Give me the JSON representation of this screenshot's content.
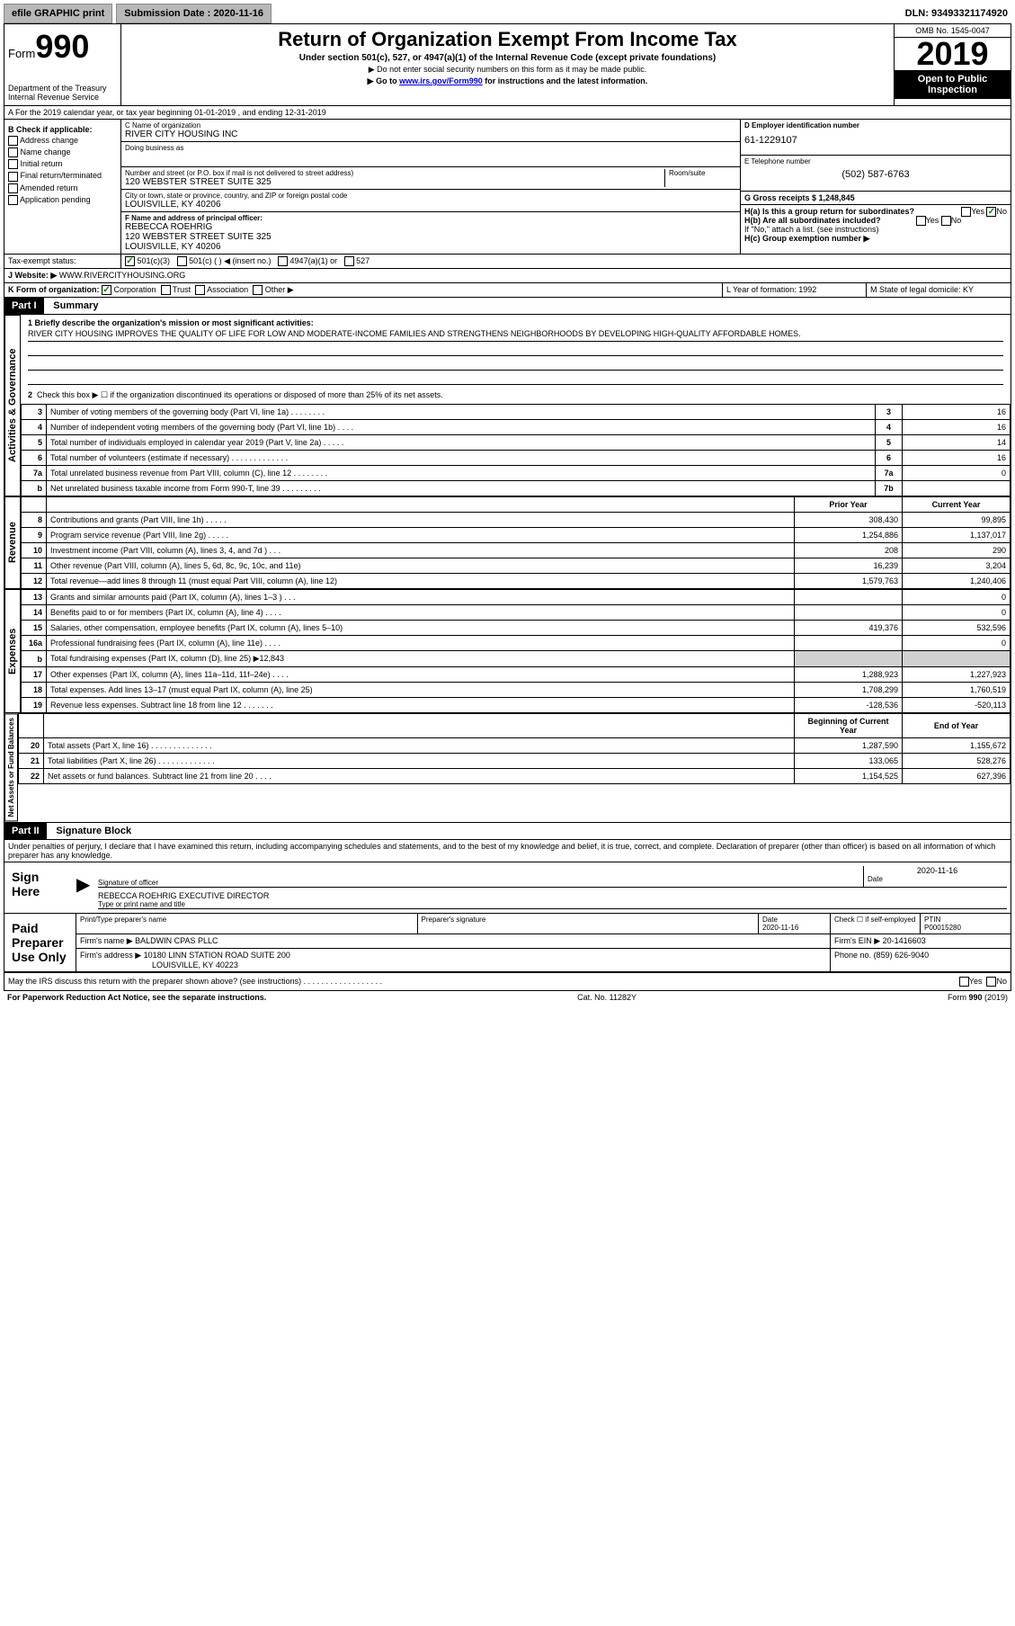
{
  "topbar": {
    "efile": "efile GRAPHIC print",
    "submission_label": "Submission Date : 2020-11-16",
    "dln_label": "DLN: 93493321174920"
  },
  "header": {
    "form_label": "Form",
    "form_number": "990",
    "dept": "Department of the Treasury\nInternal Revenue Service",
    "title": "Return of Organization Exempt From Income Tax",
    "sub1": "Under section 501(c), 527, or 4947(a)(1) of the Internal Revenue Code (except private foundations)",
    "sub2": "▶ Do not enter social security numbers on this form as it may be made public.",
    "sub3_prefix": "▶ Go to ",
    "sub3_link": "www.irs.gov/Form990",
    "sub3_suffix": " for instructions and the latest information.",
    "omb": "OMB No. 1545-0047",
    "year": "2019",
    "open": "Open to Public Inspection"
  },
  "section_a": "A For the 2019 calendar year, or tax year beginning 01-01-2019   , and ending 12-31-2019",
  "check_b": {
    "title": "B Check if applicable:",
    "items": [
      "Address change",
      "Name change",
      "Initial return",
      "Final return/terminated",
      "Amended return",
      "Application pending"
    ]
  },
  "org": {
    "name_label": "C Name of organization",
    "name": "RIVER CITY HOUSING INC",
    "dba_label": "Doing business as",
    "dba": "",
    "addr_label": "Number and street (or P.O. box if mail is not delivered to street address)",
    "addr": "120 WEBSTER STREET SUITE 325",
    "room_label": "Room/suite",
    "city_label": "City or town, state or province, country, and ZIP or foreign postal code",
    "city": "LOUISVILLE, KY  40206",
    "f_label": "F  Name and address of principal officer:",
    "f_name": "REBECCA ROEHRIG",
    "f_addr1": "120 WEBSTER STREET SUITE 325",
    "f_addr2": "LOUISVILLE, KY  40206"
  },
  "right": {
    "ein_label": "D Employer identification number",
    "ein": "61-1229107",
    "tel_label": "E Telephone number",
    "tel": "(502) 587-6763",
    "gross_label": "G Gross receipts $ 1,248,845",
    "ha_label": "H(a)  Is this a group return for subordinates?",
    "hb_label": "H(b)  Are all subordinates included?",
    "hb_note": "If \"No,\" attach a list. (see instructions)",
    "hc_label": "H(c)  Group exemption number ▶",
    "yes": "Yes",
    "no": "No"
  },
  "tax_status": {
    "label": "Tax-exempt status:",
    "opt1": "501(c)(3)",
    "opt2": "501(c) (  ) ◀ (insert no.)",
    "opt3": "4947(a)(1) or",
    "opt4": "527"
  },
  "website": {
    "label": "J  Website: ▶",
    "value": "WWW.RIVERCITYHOUSING.ORG"
  },
  "k_line": {
    "label": "K Form of organization:",
    "corp": "Corporation",
    "trust": "Trust",
    "assoc": "Association",
    "other": "Other ▶",
    "l_label": "L Year of formation: 1992",
    "m_label": "M State of legal domicile: KY"
  },
  "part1": {
    "label": "Part I",
    "title": "Summary",
    "line1_label": "1  Briefly describe the organization's mission or most significant activities:",
    "line1_text": "RIVER CITY HOUSING IMPROVES THE QUALITY OF LIFE FOR LOW AND MODERATE-INCOME FAMILIES AND STRENGTHENS NEIGHBORHOODS BY DEVELOPING HIGH-QUALITY AFFORDABLE HOMES.",
    "line2": "Check this box ▶ ☐  if the organization discontinued its operations or disposed of more than 25% of its net assets.",
    "tabs": {
      "gov": "Activities & Governance",
      "rev": "Revenue",
      "exp": "Expenses",
      "net": "Net Assets or Fund Balances"
    },
    "rows_gov": [
      {
        "n": "3",
        "d": "Number of voting members of the governing body (Part VI, line 1a)  .   .   .   .   .   .   .   .",
        "b": "3",
        "v": "16"
      },
      {
        "n": "4",
        "d": "Number of independent voting members of the governing body (Part VI, line 1b)  .   .   .   .",
        "b": "4",
        "v": "16"
      },
      {
        "n": "5",
        "d": "Total number of individuals employed in calendar year 2019 (Part V, line 2a)  .   .   .   .   .",
        "b": "5",
        "v": "14"
      },
      {
        "n": "6",
        "d": "Total number of volunteers (estimate if necessary)    .   .   .   .   .   .   .   .   .   .   .   .   .",
        "b": "6",
        "v": "16"
      },
      {
        "n": "7a",
        "d": "Total unrelated business revenue from Part VIII, column (C), line 12  .   .   .   .   .   .   .   .",
        "b": "7a",
        "v": "0"
      },
      {
        "n": "b",
        "d": "Net unrelated business taxable income from Form 990-T, line 39   .   .   .   .   .   .   .   .   .",
        "b": "7b",
        "v": ""
      }
    ],
    "col_prior": "Prior Year",
    "col_current": "Current Year",
    "rows_rev": [
      {
        "n": "8",
        "d": "Contributions and grants (Part VIII, line 1h)   .   .   .   .   .",
        "p": "308,430",
        "c": "99,895"
      },
      {
        "n": "9",
        "d": "Program service revenue (Part VIII, line 2g)   .   .   .   .   .",
        "p": "1,254,886",
        "c": "1,137,017"
      },
      {
        "n": "10",
        "d": "Investment income (Part VIII, column (A), lines 3, 4, and 7d )   .   .   .",
        "p": "208",
        "c": "290"
      },
      {
        "n": "11",
        "d": "Other revenue (Part VIII, column (A), lines 5, 6d, 8c, 9c, 10c, and 11e)",
        "p": "16,239",
        "c": "3,204"
      },
      {
        "n": "12",
        "d": "Total revenue—add lines 8 through 11 (must equal Part VIII, column (A), line 12)",
        "p": "1,579,763",
        "c": "1,240,406"
      }
    ],
    "rows_exp": [
      {
        "n": "13",
        "d": "Grants and similar amounts paid (Part IX, column (A), lines 1–3 )  .   .   .",
        "p": "",
        "c": "0"
      },
      {
        "n": "14",
        "d": "Benefits paid to or for members (Part IX, column (A), line 4)   .   .   .   .",
        "p": "",
        "c": "0"
      },
      {
        "n": "15",
        "d": "Salaries, other compensation, employee benefits (Part IX, column (A), lines 5–10)",
        "p": "419,376",
        "c": "532,596"
      },
      {
        "n": "16a",
        "d": "Professional fundraising fees (Part IX, column (A), line 11e)   .   .   .   .",
        "p": "",
        "c": "0"
      },
      {
        "n": "b",
        "d": "Total fundraising expenses (Part IX, column (D), line 25) ▶12,843",
        "p": "shade",
        "c": "shade"
      },
      {
        "n": "17",
        "d": "Other expenses (Part IX, column (A), lines 11a–11d, 11f–24e)   .   .   .   .",
        "p": "1,288,923",
        "c": "1,227,923"
      },
      {
        "n": "18",
        "d": "Total expenses. Add lines 13–17 (must equal Part IX, column (A), line 25)",
        "p": "1,708,299",
        "c": "1,760,519"
      },
      {
        "n": "19",
        "d": "Revenue less expenses. Subtract line 18 from line 12  .   .   .   .   .   .   .",
        "p": "-128,536",
        "c": "-520,113"
      }
    ],
    "col_begin": "Beginning of Current Year",
    "col_end": "End of Year",
    "rows_net": [
      {
        "n": "20",
        "d": "Total assets (Part X, line 16)  .   .   .   .   .   .   .   .   .   .   .   .   .   .",
        "p": "1,287,590",
        "c": "1,155,672"
      },
      {
        "n": "21",
        "d": "Total liabilities (Part X, line 26)  .   .   .   .   .   .   .   .   .   .   .   .   .",
        "p": "133,065",
        "c": "528,276"
      },
      {
        "n": "22",
        "d": "Net assets or fund balances. Subtract line 21 from line 20  .   .   .   .",
        "p": "1,154,525",
        "c": "627,396"
      }
    ]
  },
  "part2": {
    "label": "Part II",
    "title": "Signature Block",
    "decl": "Under penalties of perjury, I declare that I have examined this return, including accompanying schedules and statements, and to the best of my knowledge and belief, it is true, correct, and complete. Declaration of preparer (other than officer) is based on all information of which preparer has any knowledge.",
    "sign_here": "Sign Here",
    "sig_officer": "Signature of officer",
    "sig_date": "2020-11-16",
    "date_label": "Date",
    "officer_name": "REBECCA ROEHRIG  EXECUTIVE DIRECTOR",
    "type_label": "Type or print name and title",
    "paid": "Paid Preparer Use Only",
    "prep_name_label": "Print/Type preparer's name",
    "prep_sig_label": "Preparer's signature",
    "prep_date": "2020-11-16",
    "check_self": "Check ☐ if self-employed",
    "ptin_label": "PTIN",
    "ptin": "P00015280",
    "firm_name_label": "Firm's name    ▶",
    "firm_name": "BALDWIN CPAS PLLC",
    "firm_ein_label": "Firm's EIN ▶",
    "firm_ein": "20-1416603",
    "firm_addr_label": "Firm's address ▶",
    "firm_addr1": "10180 LINN STATION ROAD SUITE 200",
    "firm_addr2": "LOUISVILLE, KY  40223",
    "phone_label": "Phone no.",
    "phone": "(859) 626-9040",
    "may_irs": "May the IRS discuss this return with the preparer shown above? (see instructions)   .   .   .   .   .   .   .   .   .   .   .   .   .   .   .   .   .   .",
    "yes": "Yes",
    "no": "No"
  },
  "footer": {
    "left": "For Paperwork Reduction Act Notice, see the separate instructions.",
    "mid": "Cat. No. 11282Y",
    "right": "Form 990 (2019)"
  }
}
